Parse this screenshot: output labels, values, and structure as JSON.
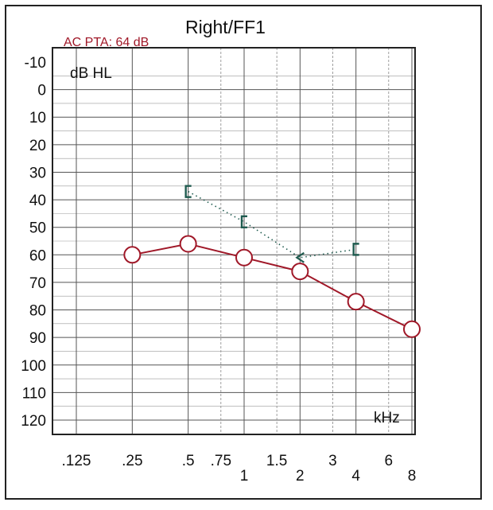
{
  "chart_data": {
    "type": "line",
    "title": "Right/FF1",
    "subtitle": "AC PTA: 64 dB",
    "ylabel": "dB HL",
    "xlabel": "kHz",
    "ylim": [
      -10,
      120
    ],
    "yticks": [
      -10,
      0,
      10,
      20,
      30,
      40,
      50,
      60,
      70,
      80,
      90,
      100,
      110,
      120
    ],
    "y_inverted": true,
    "x_scale": "log",
    "x_tick_labels": [
      {
        "label": ".125",
        "value": 0.125
      },
      {
        "label": ".25",
        "value": 0.25
      },
      {
        "label": ".5",
        "value": 0.5
      },
      {
        "label": ".75",
        "value": 0.75
      },
      {
        "label": "1",
        "value": 1
      },
      {
        "label": "1.5",
        "value": 1.5
      },
      {
        "label": "2",
        "value": 2
      },
      {
        "label": "3",
        "value": 3
      },
      {
        "label": "4",
        "value": 4
      },
      {
        "label": "6",
        "value": 6
      },
      {
        "label": "8",
        "value": 8
      }
    ],
    "grid": true,
    "series": [
      {
        "marker": "circle",
        "line": "solid",
        "color": "#a01828",
        "points": [
          {
            "x": 0.25,
            "y": 60
          },
          {
            "x": 0.5,
            "y": 56
          },
          {
            "x": 1,
            "y": 61
          },
          {
            "x": 2,
            "y": 66
          },
          {
            "x": 4,
            "y": 77
          },
          {
            "x": 8,
            "y": 87
          }
        ]
      },
      {
        "marker": "bracket",
        "line": "dotted",
        "color": "#1f5b4f",
        "points": [
          {
            "x": 0.5,
            "y": 37
          },
          {
            "x": 1,
            "y": 48
          },
          {
            "x": 2,
            "y": 61
          },
          {
            "x": 4,
            "y": 58
          }
        ]
      }
    ]
  }
}
